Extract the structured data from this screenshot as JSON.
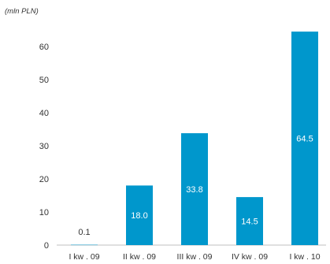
{
  "chart_data": {
    "type": "bar",
    "unit_label": "(mln PLN)",
    "categories": [
      "I kw . 09",
      "II kw . 09",
      "III kw . 09",
      "IV kw . 09",
      "I kw . 10"
    ],
    "values": [
      0.1,
      18.0,
      33.8,
      14.5,
      64.5
    ],
    "value_labels": [
      "0.1",
      "18.0",
      "33.8",
      "14.5",
      "64.5"
    ],
    "yticks": [
      "0",
      "10",
      "20",
      "30",
      "40",
      "50",
      "60"
    ],
    "ylim": [
      0,
      64.5
    ],
    "bar_color": "#0097cc",
    "label_color_inside": "#ffffff",
    "label_color_outside": "#333333",
    "grid": false,
    "legend": "none"
  }
}
